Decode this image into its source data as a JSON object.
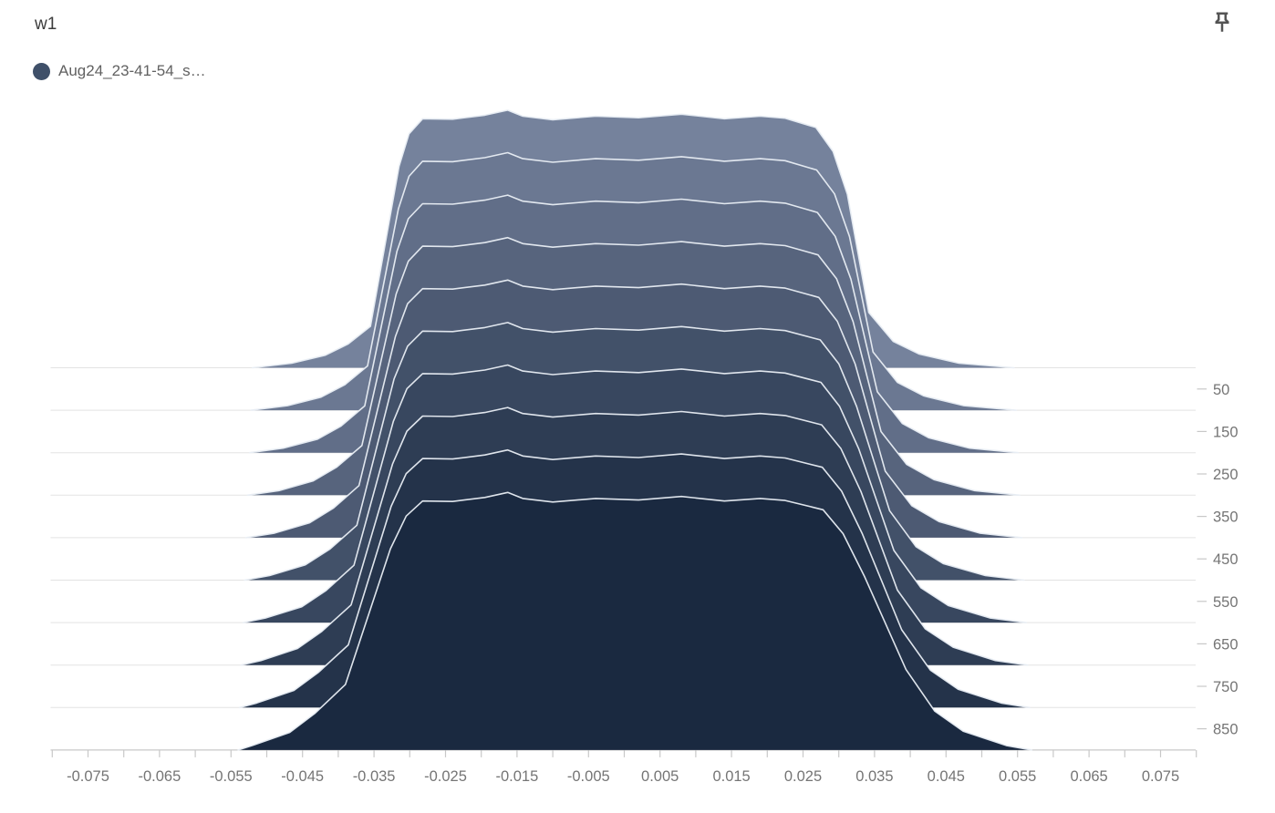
{
  "header": {
    "title": "w1"
  },
  "legend": {
    "run_label": "Aug24_23-41-54_s…",
    "run_color": "#3F5069"
  },
  "icons": {
    "pin": "push-pin-icon"
  },
  "chart_data": {
    "type": "area",
    "subtype": "tensorboard-offset-histogram-ridgeline",
    "title": "w1",
    "series_name": "Aug24_23-41-54_s…",
    "xlabel": "",
    "ylabel": "step",
    "grid": "horizontal-baselines",
    "legend_position": "top-left",
    "x_axis": {
      "min": -0.08,
      "max": 0.08,
      "minor_tick_step": 0.005,
      "tick_labels": [
        "-0.075",
        "-0.065",
        "-0.055",
        "-0.045",
        "-0.035",
        "-0.025",
        "-0.015",
        "-0.005",
        "0.005",
        "0.015",
        "0.025",
        "0.035",
        "0.045",
        "0.055",
        "0.065",
        "0.075"
      ]
    },
    "y_axis": {
      "side": "right",
      "range": [
        0,
        900
      ],
      "tick_values": [
        50,
        150,
        250,
        350,
        450,
        550,
        650,
        750,
        850
      ],
      "tick_labels": [
        "50",
        "150",
        "250",
        "350",
        "450",
        "550",
        "650",
        "750",
        "850"
      ]
    },
    "style": {
      "back_color": "#75829C",
      "front_color": "#1A2940",
      "outline_color": "#E9EEF4",
      "gridline_color": "#E3E3E3",
      "axis_color": "#C8C8C8",
      "tick_label_color": "#757575"
    },
    "slices": [
      {
        "step": 0,
        "color": "#75829C",
        "points": [
          [
            -0.052,
            0
          ],
          [
            -0.0465,
            0.018
          ],
          [
            -0.0418,
            0.05
          ],
          [
            -0.0386,
            0.095
          ],
          [
            -0.0355,
            0.165
          ],
          [
            -0.0315,
            0.8
          ],
          [
            -0.0301,
            0.93
          ],
          [
            -0.0282,
            0.99
          ],
          [
            -0.024,
            0.988
          ],
          [
            -0.0195,
            1.004
          ],
          [
            -0.0163,
            1.024
          ],
          [
            -0.0142,
            1.0
          ],
          [
            -0.01,
            0.986
          ],
          [
            -0.004,
            1.0
          ],
          [
            0.002,
            0.994
          ],
          [
            0.008,
            1.008
          ],
          [
            0.014,
            0.99
          ],
          [
            0.019,
            1.0
          ],
          [
            0.0225,
            0.992
          ],
          [
            0.0268,
            0.955
          ],
          [
            0.0292,
            0.86
          ],
          [
            0.0312,
            0.69
          ],
          [
            0.0342,
            0.22
          ],
          [
            0.0376,
            0.105
          ],
          [
            0.0412,
            0.055
          ],
          [
            0.0468,
            0.018
          ],
          [
            0.0545,
            0
          ]
        ]
      },
      {
        "step": 100,
        "color": "#6B7892",
        "points": [
          [
            -0.0522,
            0
          ],
          [
            -0.0471,
            0.018
          ],
          [
            -0.0424,
            0.052
          ],
          [
            -0.0391,
            0.101
          ],
          [
            -0.0359,
            0.176
          ],
          [
            -0.0316,
            0.8
          ],
          [
            -0.0301,
            0.93
          ],
          [
            -0.0282,
            0.99
          ],
          [
            -0.024,
            0.988
          ],
          [
            -0.0195,
            1.004
          ],
          [
            -0.0163,
            1.024
          ],
          [
            -0.0142,
            1.0
          ],
          [
            -0.01,
            0.986
          ],
          [
            -0.004,
            1.0
          ],
          [
            0.002,
            0.994
          ],
          [
            0.008,
            1.008
          ],
          [
            0.014,
            0.99
          ],
          [
            0.019,
            1.0
          ],
          [
            0.0225,
            0.992
          ],
          [
            0.0269,
            0.955
          ],
          [
            0.0294,
            0.86
          ],
          [
            0.0315,
            0.69
          ],
          [
            0.0348,
            0.231
          ],
          [
            0.0382,
            0.111
          ],
          [
            0.0419,
            0.057
          ],
          [
            0.0475,
            0.018
          ],
          [
            0.0548,
            0
          ]
        ]
      },
      {
        "step": 200,
        "color": "#616E88",
        "points": [
          [
            -0.0524,
            0
          ],
          [
            -0.0477,
            0.018
          ],
          [
            -0.0429,
            0.054
          ],
          [
            -0.0396,
            0.106
          ],
          [
            -0.0363,
            0.186
          ],
          [
            -0.0318,
            0.8
          ],
          [
            -0.0302,
            0.93
          ],
          [
            -0.0282,
            0.99
          ],
          [
            -0.024,
            0.988
          ],
          [
            -0.0195,
            1.004
          ],
          [
            -0.0163,
            1.024
          ],
          [
            -0.0142,
            1.0
          ],
          [
            -0.01,
            0.986
          ],
          [
            -0.004,
            1.0
          ],
          [
            0.002,
            0.994
          ],
          [
            0.008,
            1.008
          ],
          [
            0.014,
            0.99
          ],
          [
            0.019,
            1.0
          ],
          [
            0.0225,
            0.992
          ],
          [
            0.027,
            0.955
          ],
          [
            0.0295,
            0.86
          ],
          [
            0.0317,
            0.69
          ],
          [
            0.0354,
            0.242
          ],
          [
            0.0389,
            0.116
          ],
          [
            0.0426,
            0.059
          ],
          [
            0.0483,
            0.018
          ],
          [
            0.0551,
            0
          ]
        ]
      },
      {
        "step": 300,
        "color": "#57647D",
        "points": [
          [
            -0.0527,
            0
          ],
          [
            -0.0483,
            0.018
          ],
          [
            -0.0435,
            0.057
          ],
          [
            -0.0402,
            0.112
          ],
          [
            -0.0367,
            0.197
          ],
          [
            -0.0319,
            0.8
          ],
          [
            -0.0302,
            0.93
          ],
          [
            -0.0282,
            0.99
          ],
          [
            -0.024,
            0.988
          ],
          [
            -0.0195,
            1.004
          ],
          [
            -0.0163,
            1.024
          ],
          [
            -0.0142,
            1.0
          ],
          [
            -0.01,
            0.986
          ],
          [
            -0.004,
            1.0
          ],
          [
            0.002,
            0.994
          ],
          [
            0.008,
            1.008
          ],
          [
            0.014,
            0.99
          ],
          [
            0.019,
            1.0
          ],
          [
            0.0225,
            0.992
          ],
          [
            0.0271,
            0.955
          ],
          [
            0.0297,
            0.86
          ],
          [
            0.032,
            0.69
          ],
          [
            0.0359,
            0.253
          ],
          [
            0.0395,
            0.122
          ],
          [
            0.0433,
            0.062
          ],
          [
            0.049,
            0.018
          ],
          [
            0.0553,
            0
          ]
        ]
      },
      {
        "step": 400,
        "color": "#4D5A73",
        "points": [
          [
            -0.0529,
            0
          ],
          [
            -0.0489,
            0.018
          ],
          [
            -0.044,
            0.059
          ],
          [
            -0.0407,
            0.117
          ],
          [
            -0.0371,
            0.207
          ],
          [
            -0.032,
            0.8
          ],
          [
            -0.0303,
            0.93
          ],
          [
            -0.0282,
            0.99
          ],
          [
            -0.024,
            0.988
          ],
          [
            -0.0195,
            1.004
          ],
          [
            -0.0163,
            1.024
          ],
          [
            -0.0142,
            1.0
          ],
          [
            -0.01,
            0.986
          ],
          [
            -0.004,
            1.0
          ],
          [
            0.002,
            0.994
          ],
          [
            0.008,
            1.008
          ],
          [
            0.014,
            0.99
          ],
          [
            0.019,
            1.0
          ],
          [
            0.0225,
            0.992
          ],
          [
            0.0272,
            0.955
          ],
          [
            0.0298,
            0.86
          ],
          [
            0.0323,
            0.69
          ],
          [
            0.0365,
            0.264
          ],
          [
            0.0402,
            0.127
          ],
          [
            0.044,
            0.064
          ],
          [
            0.0497,
            0.018
          ],
          [
            0.0556,
            0
          ]
        ]
      },
      {
        "step": 500,
        "color": "#425169",
        "points": [
          [
            -0.0531,
            0
          ],
          [
            -0.0496,
            0.018
          ],
          [
            -0.0446,
            0.061
          ],
          [
            -0.0412,
            0.123
          ],
          [
            -0.0374,
            0.218
          ],
          [
            -0.0322,
            0.8
          ],
          [
            -0.0303,
            0.93
          ],
          [
            -0.0282,
            0.99
          ],
          [
            -0.024,
            0.988
          ],
          [
            -0.0195,
            1.004
          ],
          [
            -0.0163,
            1.024
          ],
          [
            -0.0142,
            1.0
          ],
          [
            -0.01,
            0.986
          ],
          [
            -0.004,
            1.0
          ],
          [
            0.002,
            0.994
          ],
          [
            0.008,
            1.008
          ],
          [
            0.014,
            0.99
          ],
          [
            0.019,
            1.0
          ],
          [
            0.0225,
            0.992
          ],
          [
            0.0274,
            0.955
          ],
          [
            0.03,
            0.86
          ],
          [
            0.0325,
            0.69
          ],
          [
            0.0371,
            0.276
          ],
          [
            0.0408,
            0.133
          ],
          [
            0.0446,
            0.066
          ],
          [
            0.0505,
            0.018
          ],
          [
            0.0559,
            0
          ]
        ]
      },
      {
        "step": 600,
        "color": "#38475F",
        "points": [
          [
            -0.0533,
            0
          ],
          [
            -0.0502,
            0.018
          ],
          [
            -0.0451,
            0.063
          ],
          [
            -0.0417,
            0.128
          ],
          [
            -0.0378,
            0.228
          ],
          [
            -0.0323,
            0.8
          ],
          [
            -0.0304,
            0.93
          ],
          [
            -0.0282,
            0.99
          ],
          [
            -0.024,
            0.988
          ],
          [
            -0.0195,
            1.004
          ],
          [
            -0.0163,
            1.024
          ],
          [
            -0.0142,
            1.0
          ],
          [
            -0.01,
            0.986
          ],
          [
            -0.004,
            1.0
          ],
          [
            0.002,
            0.994
          ],
          [
            0.008,
            1.008
          ],
          [
            0.014,
            0.99
          ],
          [
            0.019,
            1.0
          ],
          [
            0.0225,
            0.992
          ],
          [
            0.0275,
            0.955
          ],
          [
            0.0301,
            0.86
          ],
          [
            0.0328,
            0.69
          ],
          [
            0.0377,
            0.287
          ],
          [
            0.0415,
            0.138
          ],
          [
            0.0453,
            0.068
          ],
          [
            0.0512,
            0.018
          ],
          [
            0.0562,
            0
          ]
        ]
      },
      {
        "step": 700,
        "color": "#2E3D54",
        "points": [
          [
            -0.0536,
            0
          ],
          [
            -0.0508,
            0.018
          ],
          [
            -0.0457,
            0.066
          ],
          [
            -0.0423,
            0.134
          ],
          [
            -0.0382,
            0.239
          ],
          [
            -0.0324,
            0.8
          ],
          [
            -0.0304,
            0.93
          ],
          [
            -0.0282,
            0.99
          ],
          [
            -0.024,
            0.988
          ],
          [
            -0.0195,
            1.004
          ],
          [
            -0.0163,
            1.024
          ],
          [
            -0.0142,
            1.0
          ],
          [
            -0.01,
            0.986
          ],
          [
            -0.004,
            1.0
          ],
          [
            0.002,
            0.994
          ],
          [
            0.008,
            1.008
          ],
          [
            0.014,
            0.99
          ],
          [
            0.019,
            1.0
          ],
          [
            0.0225,
            0.992
          ],
          [
            0.0276,
            0.955
          ],
          [
            0.0303,
            0.86
          ],
          [
            0.0331,
            0.69
          ],
          [
            0.0382,
            0.298
          ],
          [
            0.0421,
            0.144
          ],
          [
            0.046,
            0.071
          ],
          [
            0.0519,
            0.018
          ],
          [
            0.0564,
            0
          ]
        ]
      },
      {
        "step": 800,
        "color": "#24334A",
        "points": [
          [
            -0.0538,
            0
          ],
          [
            -0.0514,
            0.018
          ],
          [
            -0.0462,
            0.068
          ],
          [
            -0.0428,
            0.139
          ],
          [
            -0.0386,
            0.249
          ],
          [
            -0.0326,
            0.8
          ],
          [
            -0.0305,
            0.93
          ],
          [
            -0.0282,
            0.99
          ],
          [
            -0.024,
            0.988
          ],
          [
            -0.0195,
            1.004
          ],
          [
            -0.0163,
            1.024
          ],
          [
            -0.0142,
            1.0
          ],
          [
            -0.01,
            0.986
          ],
          [
            -0.004,
            1.0
          ],
          [
            0.002,
            0.994
          ],
          [
            0.008,
            1.008
          ],
          [
            0.014,
            0.99
          ],
          [
            0.019,
            1.0
          ],
          [
            0.0225,
            0.992
          ],
          [
            0.0277,
            0.955
          ],
          [
            0.0304,
            0.86
          ],
          [
            0.0333,
            0.69
          ],
          [
            0.0388,
            0.309
          ],
          [
            0.0428,
            0.149
          ],
          [
            0.0467,
            0.073
          ],
          [
            0.0527,
            0.018
          ],
          [
            0.0567,
            0
          ]
        ]
      },
      {
        "step": 900,
        "color": "#1A2940",
        "points": [
          [
            -0.054,
            0
          ],
          [
            -0.052,
            0.018
          ],
          [
            -0.0468,
            0.07
          ],
          [
            -0.0433,
            0.145
          ],
          [
            -0.039,
            0.26
          ],
          [
            -0.0327,
            0.8
          ],
          [
            -0.0305,
            0.93
          ],
          [
            -0.0282,
            0.99
          ],
          [
            -0.024,
            0.988
          ],
          [
            -0.0195,
            1.004
          ],
          [
            -0.0163,
            1.024
          ],
          [
            -0.0142,
            1.0
          ],
          [
            -0.01,
            0.986
          ],
          [
            -0.004,
            1.0
          ],
          [
            0.002,
            0.994
          ],
          [
            0.008,
            1.008
          ],
          [
            0.014,
            0.99
          ],
          [
            0.019,
            1.0
          ],
          [
            0.0225,
            0.992
          ],
          [
            0.0278,
            0.955
          ],
          [
            0.0306,
            0.86
          ],
          [
            0.0336,
            0.69
          ],
          [
            0.0394,
            0.32
          ],
          [
            0.0434,
            0.155
          ],
          [
            0.0474,
            0.075
          ],
          [
            0.0534,
            0.018
          ],
          [
            0.057,
            0
          ]
        ]
      }
    ]
  }
}
